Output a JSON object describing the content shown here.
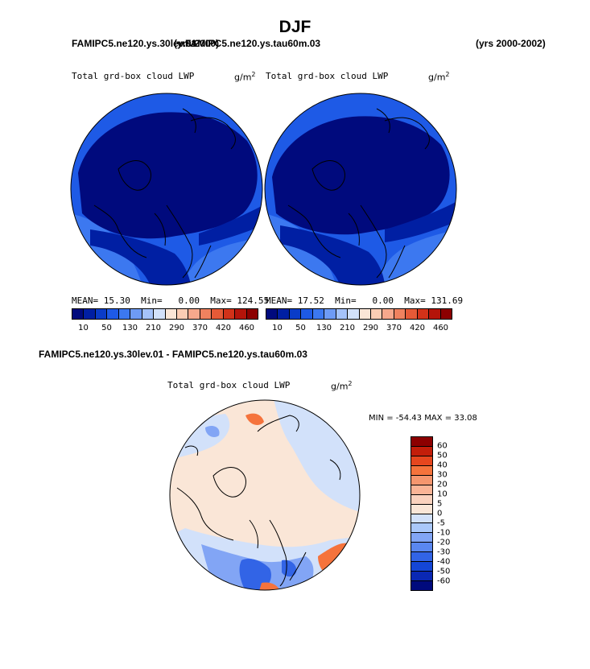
{
  "season": "DJF",
  "left_case": "FAMIPC5.ne120.ys.30lev.01",
  "right_case": "FAMIPC5.ne120.ys.tau60m.03",
  "years_left": "(yrs 2000)",
  "years_right": "(yrs 2000-2002)",
  "diff_title": "FAMIPC5.ne120.ys.30lev.01 - FAMIPC5.ne120.ys.tau60m.03",
  "panels": {
    "left": {
      "field": "Total grd-box cloud LWP",
      "units": "g/m",
      "units_sup": "2",
      "stats": {
        "mean_label": "MEAN=",
        "mean": "15.30",
        "min_label": "Min=",
        "min": "0.00",
        "max_label": "Max=",
        "max": "124.55"
      }
    },
    "right": {
      "field": "Total grd-box cloud LWP",
      "units": "g/m",
      "units_sup": "2",
      "stats": {
        "mean_label": "MEAN=",
        "mean": "17.52",
        "min_label": "Min=",
        "min": "0.00",
        "max_label": "Max=",
        "max": "131.69"
      }
    },
    "diff": {
      "field": "Total grd-box cloud LWP",
      "units": "g/m",
      "units_sup": "2",
      "stats_text": "MIN = -54.43 MAX =  33.08"
    }
  },
  "abs_colorbar": {
    "colors": [
      "#000a7d",
      "#001fa3",
      "#0a3cc8",
      "#1e5ae6",
      "#3c78f0",
      "#6e9bf5",
      "#a5c3fa",
      "#d2e1fa",
      "#fae6d7",
      "#fbcdb4",
      "#f7a88c",
      "#f0825f",
      "#e65a37",
      "#d23219",
      "#b4140a",
      "#8c0000"
    ],
    "labels": [
      "10",
      "50",
      "130",
      "210",
      "290",
      "370",
      "420",
      "460"
    ]
  },
  "diff_colorbar": {
    "colors": [
      "#8c0000",
      "#c31e0a",
      "#e6461e",
      "#f5733c",
      "#f5966e",
      "#fab496",
      "#fad2be",
      "#fae6d7",
      "#d2e1fa",
      "#aac8fa",
      "#82a5f5",
      "#5a87f0",
      "#3264e6",
      "#1446d7",
      "#0a28b4",
      "#000a7d"
    ],
    "labels": [
      "60",
      "50",
      "40",
      "30",
      "20",
      "10",
      "5",
      "0",
      "-5",
      "-10",
      "-20",
      "-30",
      "-40",
      "-50",
      "-60"
    ]
  },
  "map_colors": {
    "abs_background": "#1e5ae6",
    "abs_dark": "#000a7d",
    "abs_mid": "#001fa3",
    "abs_light": "#3c78f0",
    "diff_background": "#fae6d7",
    "diff_light_blue": "#d2e1fa",
    "diff_blue": "#82a5f5",
    "diff_deep_blue": "#3264e6",
    "diff_red": "#f5733c",
    "coastline": "#000000"
  }
}
